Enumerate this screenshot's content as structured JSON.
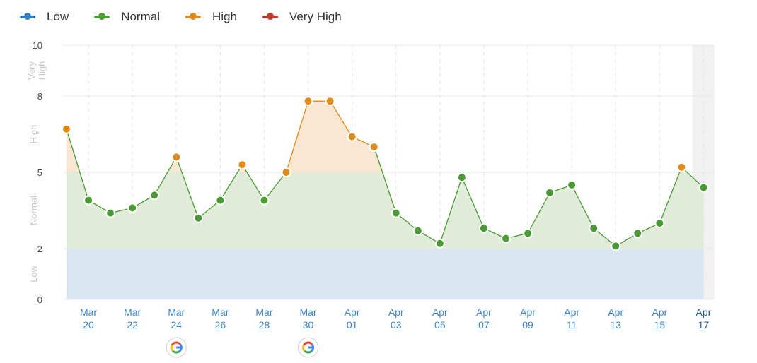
{
  "legend": [
    {
      "label": "Low",
      "color": "#2d7fc1"
    },
    {
      "label": "Normal",
      "color": "#4a9a33"
    },
    {
      "label": "High",
      "color": "#e08b1c"
    },
    {
      "label": "Very High",
      "color": "#c0392b"
    }
  ],
  "google_update_icon": "google-logo-icon",
  "chart_data": {
    "type": "line",
    "x": [
      "Mar 19",
      "Mar 20",
      "Mar 21",
      "Mar 22",
      "Mar 23",
      "Mar 24",
      "Mar 25",
      "Mar 26",
      "Mar 27",
      "Mar 28",
      "Mar 29",
      "Mar 30",
      "Mar 31",
      "Apr 01",
      "Apr 02",
      "Apr 03",
      "Apr 04",
      "Apr 05",
      "Apr 06",
      "Apr 07",
      "Apr 08",
      "Apr 09",
      "Apr 10",
      "Apr 11",
      "Apr 12",
      "Apr 13",
      "Apr 14",
      "Apr 15",
      "Apr 16",
      "Apr 17"
    ],
    "values": [
      6.7,
      3.9,
      3.4,
      3.6,
      4.1,
      5.6,
      3.2,
      3.9,
      5.3,
      3.9,
      5.0,
      7.8,
      7.8,
      6.4,
      6.0,
      3.4,
      2.7,
      2.2,
      4.8,
      2.8,
      2.4,
      2.6,
      4.2,
      4.5,
      2.8,
      2.1,
      2.6,
      3.0,
      5.2,
      4.4
    ],
    "ylim": [
      0,
      10
    ],
    "yticks": [
      "0",
      "2",
      "5",
      "8",
      "10"
    ],
    "bands": [
      {
        "label": "Low",
        "from": 0,
        "to": 2,
        "color": "#d6e5f1"
      },
      {
        "label": "Normal",
        "from": 2,
        "to": 5,
        "color": "#deebd7"
      },
      {
        "label": "High",
        "from": 5,
        "to": 8,
        "color": "#fbe5cf"
      },
      {
        "label": "Very High",
        "from": 8,
        "to": 10,
        "color": "#f7dcd9"
      }
    ],
    "band_labels": [
      "Low",
      "Normal",
      "High",
      "Very High"
    ],
    "xticks": [
      {
        "month": "Mar",
        "day": "20"
      },
      {
        "month": "Mar",
        "day": "22"
      },
      {
        "month": "Mar",
        "day": "24"
      },
      {
        "month": "Mar",
        "day": "26"
      },
      {
        "month": "Mar",
        "day": "28"
      },
      {
        "month": "Mar",
        "day": "30"
      },
      {
        "month": "Apr",
        "day": "01"
      },
      {
        "month": "Apr",
        "day": "03"
      },
      {
        "month": "Apr",
        "day": "05"
      },
      {
        "month": "Apr",
        "day": "07"
      },
      {
        "month": "Apr",
        "day": "09"
      },
      {
        "month": "Apr",
        "day": "11"
      },
      {
        "month": "Apr",
        "day": "13"
      },
      {
        "month": "Apr",
        "day": "15"
      },
      {
        "month": "Apr",
        "day": "17"
      }
    ],
    "google_updates": [
      "Mar 24",
      "Mar 30"
    ],
    "highlighted_date": "Apr 17",
    "grid": true,
    "legend_position": "top-left"
  }
}
